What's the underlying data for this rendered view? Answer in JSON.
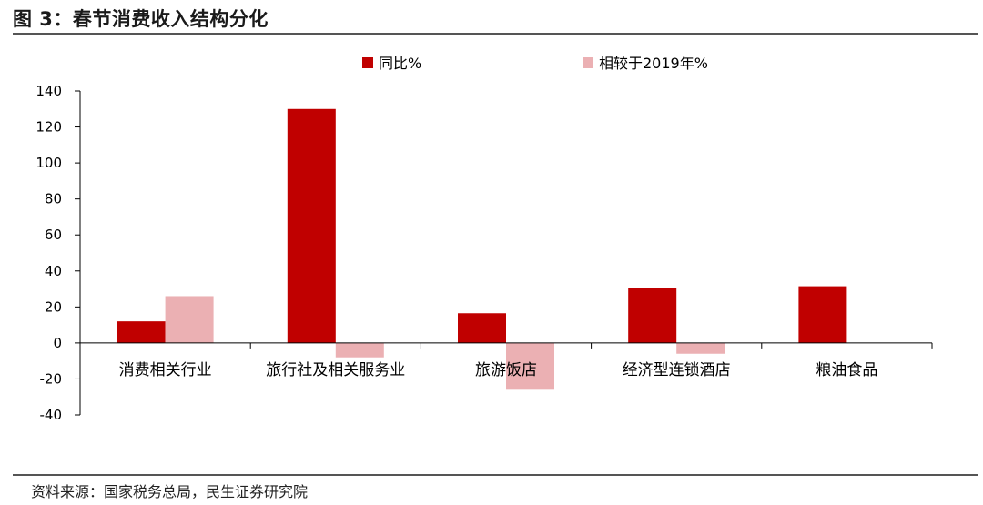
{
  "figure": {
    "title": "图 3：春节消费收入结构分化",
    "source": "资料来源：国家税务总局，民生证券研究院"
  },
  "chart_data": {
    "type": "bar",
    "categories": [
      "消费相关行业",
      "旅行社及相关服务业",
      "旅游饭店",
      "经济型连锁酒店",
      "粮油食品"
    ],
    "series": [
      {
        "name": "同比%",
        "color": "#C00000",
        "values": [
          12,
          130,
          16.5,
          30.5,
          31.5
        ]
      },
      {
        "name": "相较于2019年%",
        "color": "#EBB0B3",
        "values": [
          26,
          -8,
          -26,
          -6,
          null
        ]
      }
    ],
    "ylim": [
      -40,
      140
    ],
    "yticks": [
      -40,
      -20,
      0,
      20,
      40,
      60,
      80,
      100,
      120,
      140
    ],
    "xlabel": "",
    "ylabel": "",
    "legend_position": "top-center",
    "grid": false
  }
}
